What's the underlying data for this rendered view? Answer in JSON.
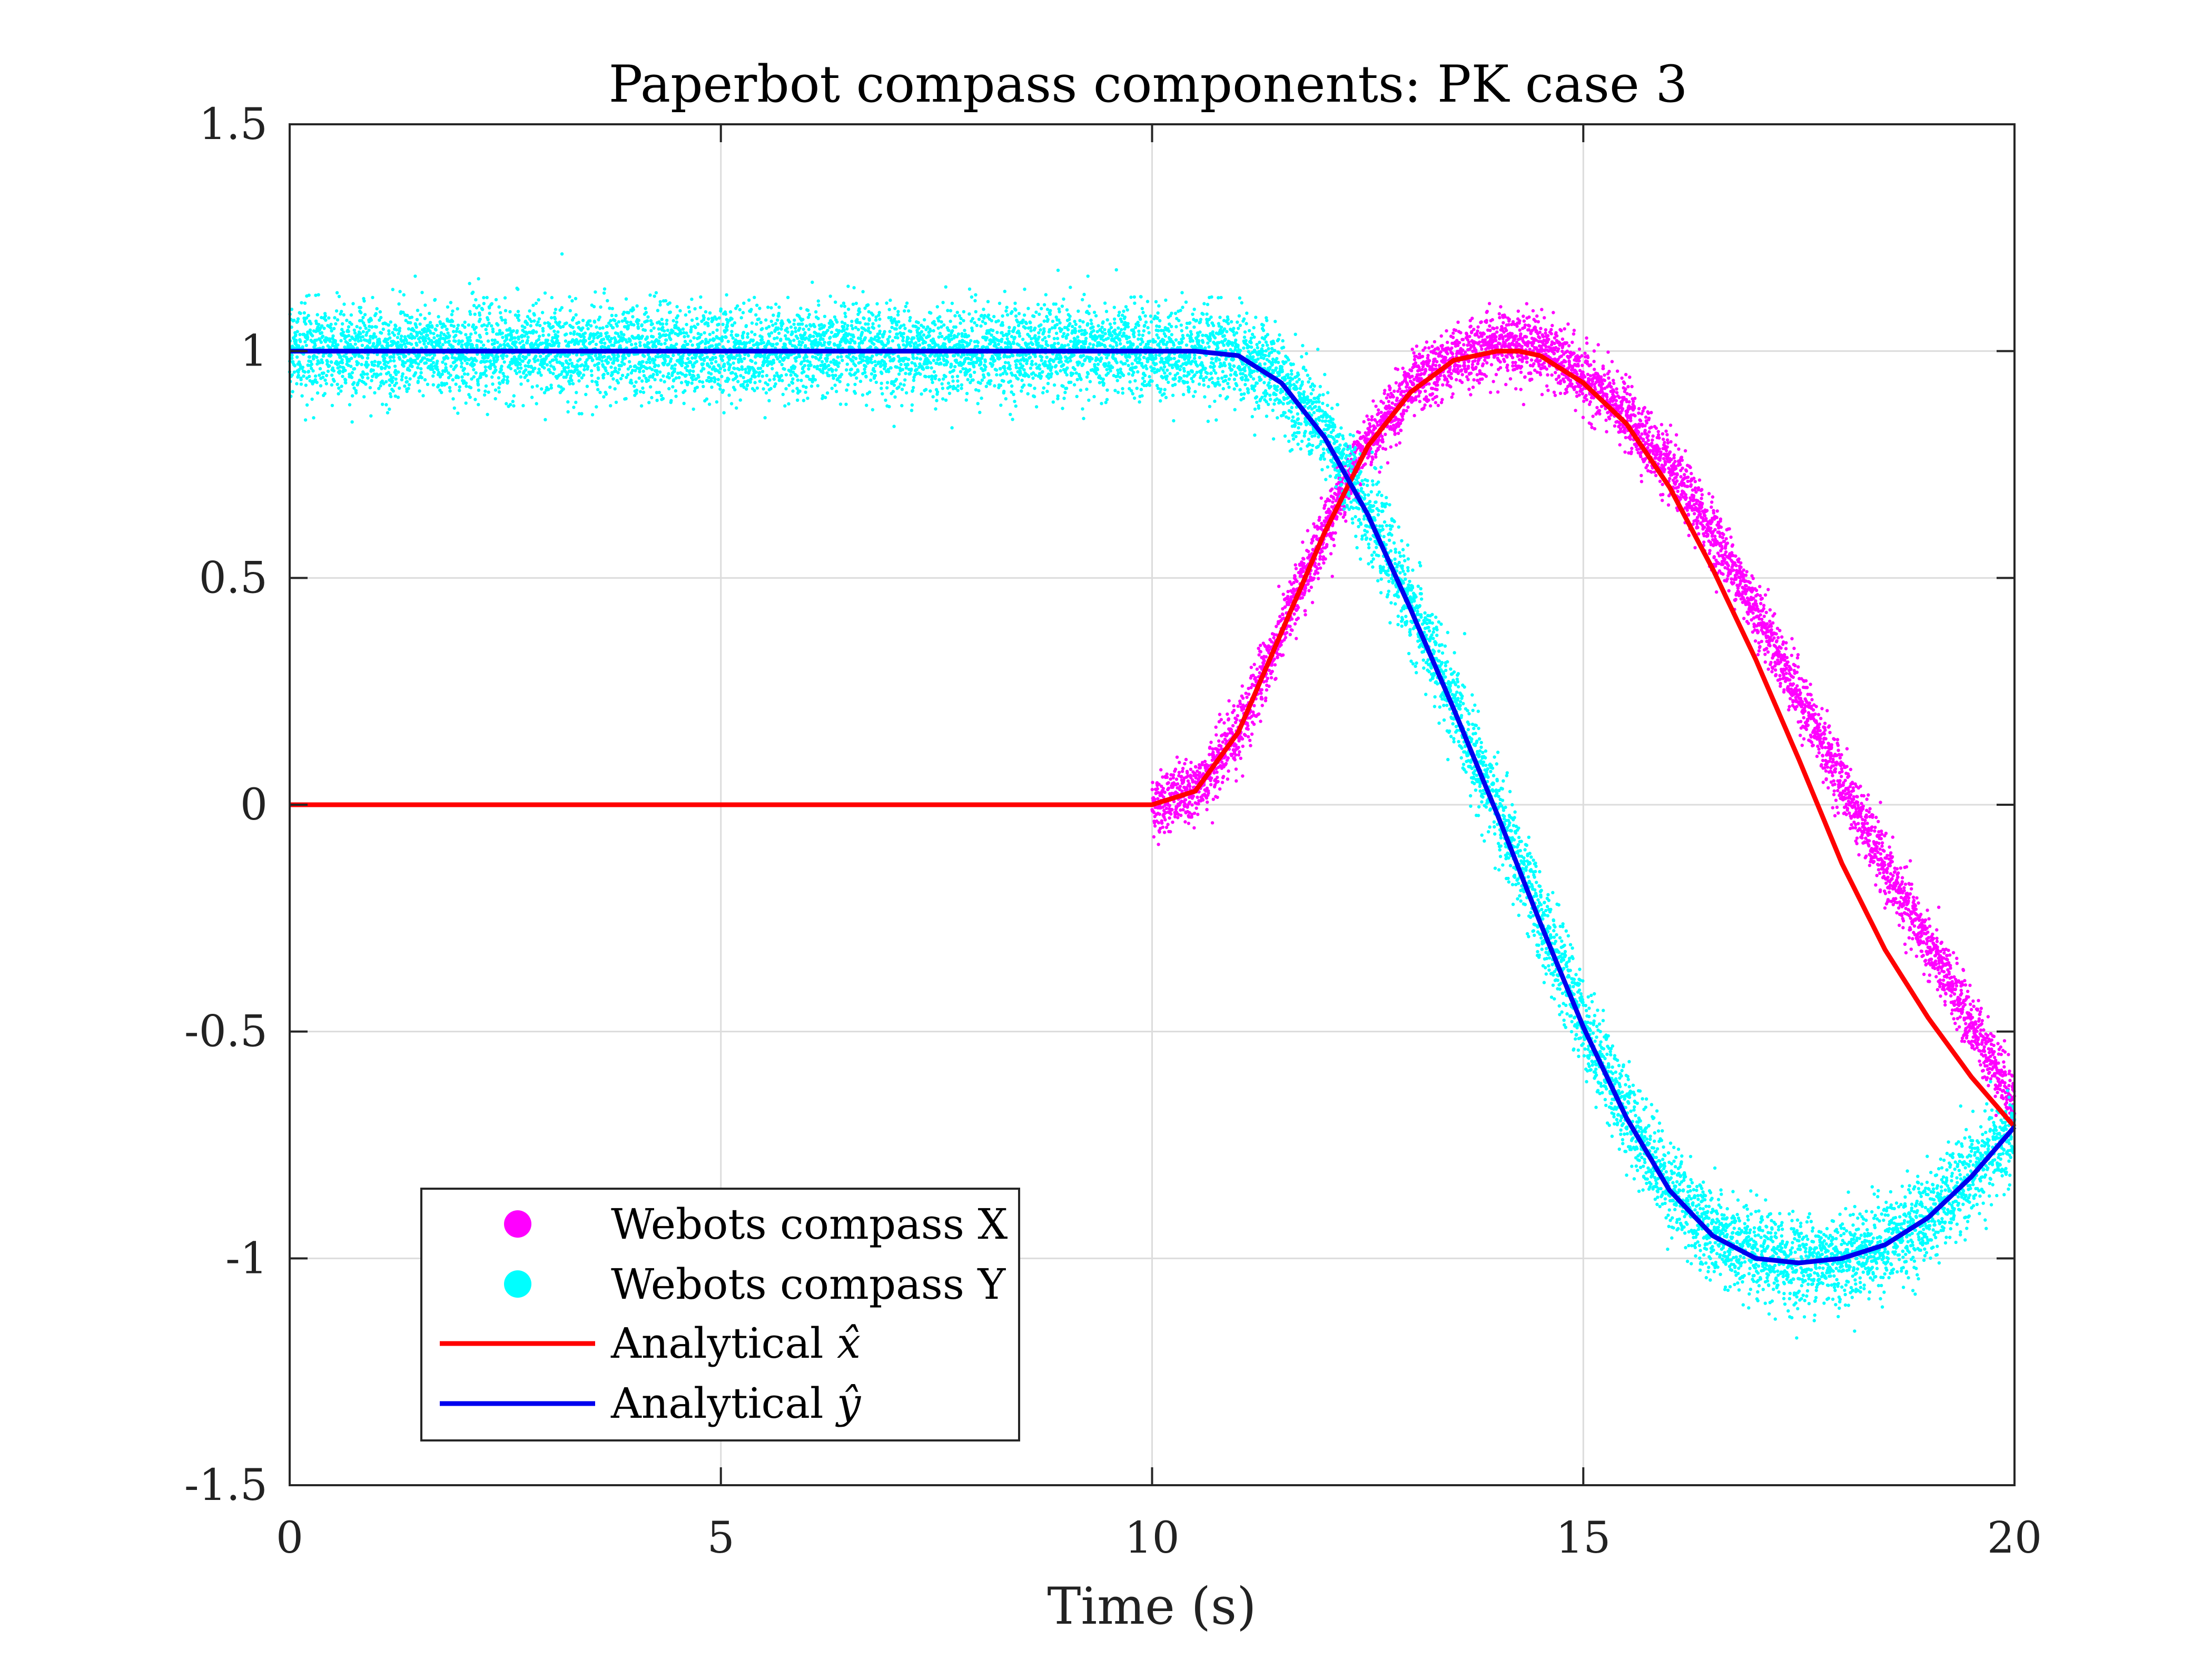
{
  "chart_data": {
    "type": "line",
    "title": "Paperbot compass components: PK case 3",
    "xlabel": "Time (s)",
    "ylabel": "",
    "xlim": [
      0,
      20
    ],
    "ylim": [
      -1.5,
      1.5
    ],
    "grid": true,
    "x_ticks": [
      0,
      5,
      10,
      15,
      20
    ],
    "x_tick_labels": [
      "0",
      "5",
      "10",
      "15",
      "20"
    ],
    "y_ticks": [
      -1.5,
      -1,
      -0.5,
      0,
      0.5,
      1,
      1.5
    ],
    "y_tick_labels": [
      "-1.5",
      "-1",
      "-0.5",
      "0",
      "0.5",
      "1",
      "1.5"
    ],
    "legend_placement": "bottom-left",
    "legend": [
      {
        "label": "Webots compass X",
        "marker": "dot",
        "color": "#ff00ff"
      },
      {
        "label": "Webots compass Y",
        "marker": "dot",
        "color": "#00ffff"
      },
      {
        "label_prefix": "Analytical ",
        "label_math": "x̂",
        "marker": "line",
        "color": "#ff0000"
      },
      {
        "label_prefix": "Analytical ",
        "label_math": "ŷ",
        "marker": "line",
        "color": "#0000ee"
      }
    ],
    "series": [
      {
        "name": "Webots compass X",
        "kind": "scatter",
        "color": "#ff00ff",
        "x": [
          10.0,
          10.5,
          11.0,
          11.5,
          12.0,
          12.5,
          13.0,
          13.5,
          14.0,
          14.5,
          15.0,
          15.5,
          16.0,
          16.5,
          17.0,
          17.5,
          18.0,
          18.5,
          19.0,
          19.5,
          20.0
        ],
        "y": [
          0.0,
          0.03,
          0.16,
          0.38,
          0.61,
          0.8,
          0.92,
          0.98,
          1.02,
          1.01,
          0.94,
          0.86,
          0.74,
          0.6,
          0.43,
          0.24,
          0.05,
          -0.14,
          -0.31,
          -0.48,
          -0.65
        ],
        "noise_std": 0.035
      },
      {
        "name": "Webots compass Y",
        "kind": "scatter",
        "color": "#00ffff",
        "x": [
          0.0,
          1.0,
          2.0,
          3.0,
          4.0,
          5.0,
          6.0,
          7.0,
          8.0,
          9.0,
          10.0,
          10.5,
          11.0,
          11.5,
          12.0,
          12.5,
          13.0,
          13.5,
          14.0,
          14.5,
          15.0,
          15.5,
          16.0,
          16.5,
          17.0,
          17.5,
          18.0,
          18.5,
          19.0,
          19.5,
          20.0
        ],
        "y": [
          1.0,
          1.0,
          1.0,
          1.0,
          1.0,
          1.0,
          1.0,
          1.0,
          1.0,
          1.0,
          1.0,
          1.0,
          0.99,
          0.94,
          0.82,
          0.65,
          0.44,
          0.22,
          -0.01,
          -0.25,
          -0.48,
          -0.68,
          -0.84,
          -0.95,
          -1.0,
          -1.01,
          -1.0,
          -0.97,
          -0.91,
          -0.82,
          -0.72
        ],
        "noise_std": 0.05
      },
      {
        "name": "Analytical x̂",
        "kind": "line",
        "color": "#ff0000",
        "x": [
          0.0,
          10.0,
          10.5,
          11.0,
          11.5,
          12.0,
          12.5,
          13.0,
          13.5,
          14.0,
          14.25,
          14.5,
          15.0,
          15.5,
          16.0,
          16.5,
          17.0,
          17.5,
          18.0,
          18.5,
          19.0,
          19.5,
          20.0
        ],
        "y": [
          0.0,
          0.0,
          0.03,
          0.16,
          0.38,
          0.6,
          0.79,
          0.91,
          0.98,
          1.0,
          1.0,
          0.99,
          0.93,
          0.84,
          0.7,
          0.52,
          0.32,
          0.1,
          -0.13,
          -0.32,
          -0.47,
          -0.6,
          -0.71
        ]
      },
      {
        "name": "Analytical ŷ",
        "kind": "line",
        "color": "#0000ee",
        "x": [
          0.0,
          10.0,
          10.5,
          11.0,
          11.5,
          12.0,
          12.5,
          13.0,
          13.5,
          14.0,
          14.5,
          15.0,
          15.5,
          16.0,
          16.5,
          17.0,
          17.5,
          18.0,
          18.5,
          19.0,
          19.5,
          20.0
        ],
        "y": [
          1.0,
          1.0,
          1.0,
          0.99,
          0.93,
          0.81,
          0.64,
          0.43,
          0.21,
          -0.02,
          -0.26,
          -0.49,
          -0.69,
          -0.85,
          -0.95,
          -1.0,
          -1.01,
          -1.0,
          -0.97,
          -0.91,
          -0.82,
          -0.71
        ]
      }
    ]
  }
}
